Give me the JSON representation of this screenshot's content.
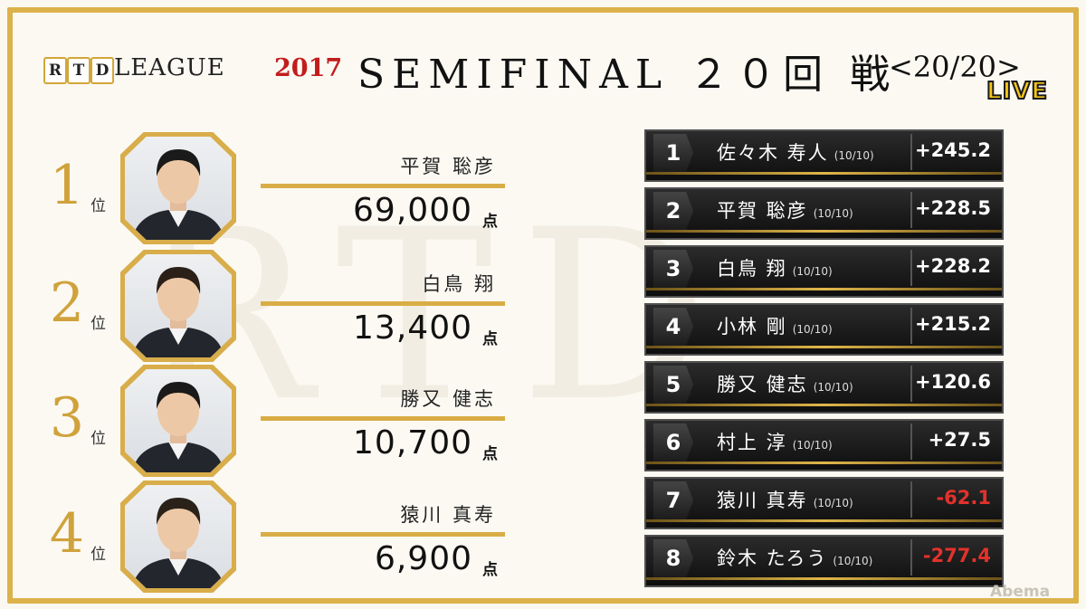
{
  "header": {
    "logo_letters": [
      "R",
      "T",
      "D"
    ],
    "league_text": "LEAGUE",
    "league_year": "2017",
    "title": "SEMIFINAL ２０回 戦",
    "round_count": "<20/20>",
    "live_badge": "LIVE"
  },
  "watermark": "RTD",
  "ranking": [
    {
      "rank": "1",
      "suffix": "位",
      "name": "平賀 聡彦",
      "score": "69,000",
      "unit": "点"
    },
    {
      "rank": "2",
      "suffix": "位",
      "name": "白鳥 翔",
      "score": "13,400",
      "unit": "点"
    },
    {
      "rank": "3",
      "suffix": "位",
      "name": "勝又 健志",
      "score": "10,700",
      "unit": "点"
    },
    {
      "rank": "4",
      "suffix": "位",
      "name": "猿川 真寿",
      "score": "6,900",
      "unit": "点"
    }
  ],
  "standings": [
    {
      "rank": "1",
      "name": "佐々木 寿人",
      "games": "(10/10)",
      "points": "+245.2",
      "negative": false
    },
    {
      "rank": "2",
      "name": "平賀 聡彦",
      "games": "(10/10)",
      "points": "+228.5",
      "negative": false
    },
    {
      "rank": "3",
      "name": "白鳥 翔",
      "games": "(10/10)",
      "points": "+228.2",
      "negative": false
    },
    {
      "rank": "4",
      "name": "小林 剛",
      "games": "(10/10)",
      "points": "+215.2",
      "negative": false
    },
    {
      "rank": "5",
      "name": "勝又 健志",
      "games": "(10/10)",
      "points": "+120.6",
      "negative": false
    },
    {
      "rank": "6",
      "name": "村上 淳",
      "games": "(10/10)",
      "points": "+27.5",
      "negative": false
    },
    {
      "rank": "7",
      "name": "猿川 真寿",
      "games": "(10/10)",
      "points": "-62.1",
      "negative": true
    },
    {
      "rank": "8",
      "name": "鈴木 たろう",
      "games": "(10/10)",
      "points": "-277.4",
      "negative": true
    }
  ],
  "footer": {
    "broadcaster": "Abema"
  },
  "colors": {
    "gold": "#dcb24a",
    "negative": "#e2322c",
    "year_red": "#c21d1d",
    "live_yellow": "#f5c518"
  }
}
